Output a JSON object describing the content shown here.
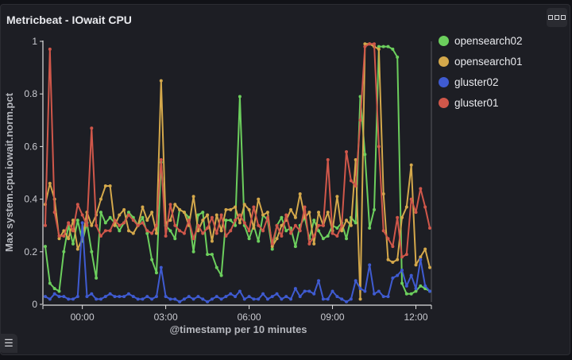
{
  "panel": {
    "title": "Metricbeat - IOwait CPU",
    "options_icon": "more-horizontal-icon",
    "legend_toggle_icon": "list-icon"
  },
  "chart_data": {
    "type": "line",
    "title": "Metricbeat - IOwait CPU",
    "xlabel": "@timestamp per 10 minutes",
    "ylabel": "Max system.cpu.iowait.norm.pct",
    "ylim": [
      0,
      1
    ],
    "yticks": [
      "0",
      "0.2",
      "0.4",
      "0.6",
      "0.8",
      "1"
    ],
    "xticks": [
      "00:00",
      "03:00",
      "06:00",
      "09:00",
      "12:00"
    ],
    "legend_position": "right",
    "grid": false,
    "x": [
      "22:40",
      "22:50",
      "23:00",
      "23:10",
      "23:20",
      "23:30",
      "23:40",
      "23:50",
      "00:00",
      "00:10",
      "00:20",
      "00:30",
      "00:40",
      "00:50",
      "01:00",
      "01:10",
      "01:20",
      "01:30",
      "01:40",
      "01:50",
      "02:00",
      "02:10",
      "02:20",
      "02:30",
      "02:40",
      "02:50",
      "03:00",
      "03:10",
      "03:20",
      "03:30",
      "03:40",
      "03:50",
      "04:00",
      "04:10",
      "04:20",
      "04:30",
      "04:40",
      "04:50",
      "05:00",
      "05:10",
      "05:20",
      "05:30",
      "05:40",
      "05:50",
      "06:00",
      "06:10",
      "06:20",
      "06:30",
      "06:40",
      "06:50",
      "07:00",
      "07:10",
      "07:20",
      "07:30",
      "07:40",
      "07:50",
      "08:00",
      "08:10",
      "08:20",
      "08:30",
      "08:40",
      "08:50",
      "09:00",
      "09:10",
      "09:20",
      "09:30",
      "09:40",
      "09:50",
      "10:00",
      "10:10",
      "10:20",
      "10:30",
      "10:40",
      "10:50",
      "11:00",
      "11:10",
      "11:20",
      "11:30",
      "11:40",
      "11:50",
      "12:00",
      "12:10",
      "12:20",
      "12:30"
    ],
    "series": [
      {
        "name": "opensearch02",
        "color": "#6ccf5d",
        "values": [
          0.22,
          0.08,
          0.06,
          0.05,
          0.2,
          0.3,
          0.23,
          0.32,
          0.24,
          0.31,
          0.2,
          0.1,
          0.35,
          0.31,
          0.33,
          0.31,
          0.28,
          0.31,
          0.35,
          0.33,
          0.3,
          0.33,
          0.27,
          0.17,
          0.12,
          0.54,
          0.3,
          0.28,
          0.25,
          0.36,
          0.35,
          0.33,
          0.2,
          0.34,
          0.35,
          0.19,
          0.19,
          0.14,
          0.11,
          0.32,
          0.32,
          0.3,
          0.79,
          0.3,
          0.25,
          0.3,
          0.24,
          0.34,
          0.32,
          0.21,
          0.3,
          0.33,
          0.28,
          0.29,
          0.22,
          0.3,
          0.33,
          0.25,
          0.32,
          0.28,
          0.25,
          0.26,
          0.3,
          0.29,
          0.31,
          0.25,
          0.33,
          0.31,
          0.79,
          0.57,
          0.29,
          0.36,
          0.98,
          0.98,
          0.98,
          0.97,
          0.94,
          0.08,
          0.04,
          0.04,
          0.05,
          0.07,
          0.06,
          0.05
        ]
      },
      {
        "name": "opensearch01",
        "color": "#d4a84b",
        "values": [
          0.38,
          0.46,
          0.4,
          0.25,
          0.28,
          0.25,
          0.32,
          0.21,
          0.25,
          0.35,
          0.3,
          0.34,
          0.4,
          0.45,
          0.45,
          0.3,
          0.34,
          0.36,
          0.28,
          0.27,
          0.3,
          0.37,
          0.32,
          0.35,
          0.27,
          0.85,
          0.31,
          0.32,
          0.38,
          0.36,
          0.35,
          0.3,
          0.41,
          0.28,
          0.32,
          0.34,
          0.24,
          0.34,
          0.28,
          0.36,
          0.36,
          0.37,
          0.31,
          0.38,
          0.36,
          0.29,
          0.4,
          0.34,
          0.35,
          0.22,
          0.25,
          0.3,
          0.32,
          0.36,
          0.33,
          0.42,
          0.33,
          0.35,
          0.23,
          0.35,
          0.3,
          0.35,
          0.28,
          0.41,
          0.28,
          0.32,
          0.3,
          0.55,
          0.02,
          0.99,
          0.99,
          0.98,
          0.97,
          0.42,
          0.17,
          0.16,
          0.17,
          0.33,
          0.37,
          0.53,
          0.15,
          0.18,
          0.21,
          0.14
        ]
      },
      {
        "name": "gluster02",
        "color": "#3f5bd1",
        "values": [
          0.03,
          0.02,
          0.04,
          0.03,
          0.03,
          0.02,
          0.02,
          0.03,
          0.31,
          0.03,
          0.04,
          0.02,
          0.02,
          0.03,
          0.04,
          0.03,
          0.03,
          0.03,
          0.04,
          0.03,
          0.02,
          0.02,
          0.03,
          0.02,
          0.03,
          0.14,
          0.03,
          0.02,
          0.02,
          0.01,
          0.02,
          0.03,
          0.02,
          0.03,
          0.02,
          0.01,
          0.02,
          0.03,
          0.02,
          0.03,
          0.04,
          0.03,
          0.05,
          0.02,
          0.03,
          0.02,
          0.02,
          0.04,
          0.02,
          0.03,
          0.04,
          0.02,
          0.03,
          0.02,
          0.06,
          0.03,
          0.05,
          0.05,
          0.04,
          0.09,
          0.02,
          0.02,
          0.05,
          0.03,
          0.02,
          0.01,
          0.02,
          0.09,
          0.06,
          0.05,
          0.15,
          0.04,
          0.05,
          0.03,
          0.03,
          0.1,
          0.11,
          0.13,
          0.07,
          0.11,
          0.06,
          0.17,
          0.07,
          0.05
        ]
      },
      {
        "name": "gluster01",
        "color": "#d0574a",
        "values": [
          0.3,
          0.97,
          0.35,
          0.26,
          0.26,
          0.31,
          0.28,
          0.38,
          0.34,
          0.3,
          0.67,
          0.3,
          0.26,
          0.28,
          0.28,
          0.32,
          0.3,
          0.31,
          0.34,
          0.32,
          0.3,
          0.31,
          0.28,
          0.27,
          0.3,
          0.55,
          0.26,
          0.38,
          0.3,
          0.28,
          0.27,
          0.32,
          0.25,
          0.3,
          0.27,
          0.29,
          0.33,
          0.27,
          0.34,
          0.26,
          0.28,
          0.32,
          0.34,
          0.31,
          0.28,
          0.37,
          0.3,
          0.28,
          0.33,
          0.23,
          0.3,
          0.26,
          0.34,
          0.27,
          0.3,
          0.28,
          0.37,
          0.23,
          0.26,
          0.3,
          0.3,
          0.55,
          0.27,
          0.26,
          0.3,
          0.58,
          0.47,
          0.45,
          0.7,
          0.98,
          0.99,
          0.99,
          0.6,
          0.28,
          0.25,
          0.22,
          0.33,
          0.18,
          0.19,
          0.4,
          0.35,
          0.44,
          0.37,
          0.29
        ]
      }
    ]
  }
}
